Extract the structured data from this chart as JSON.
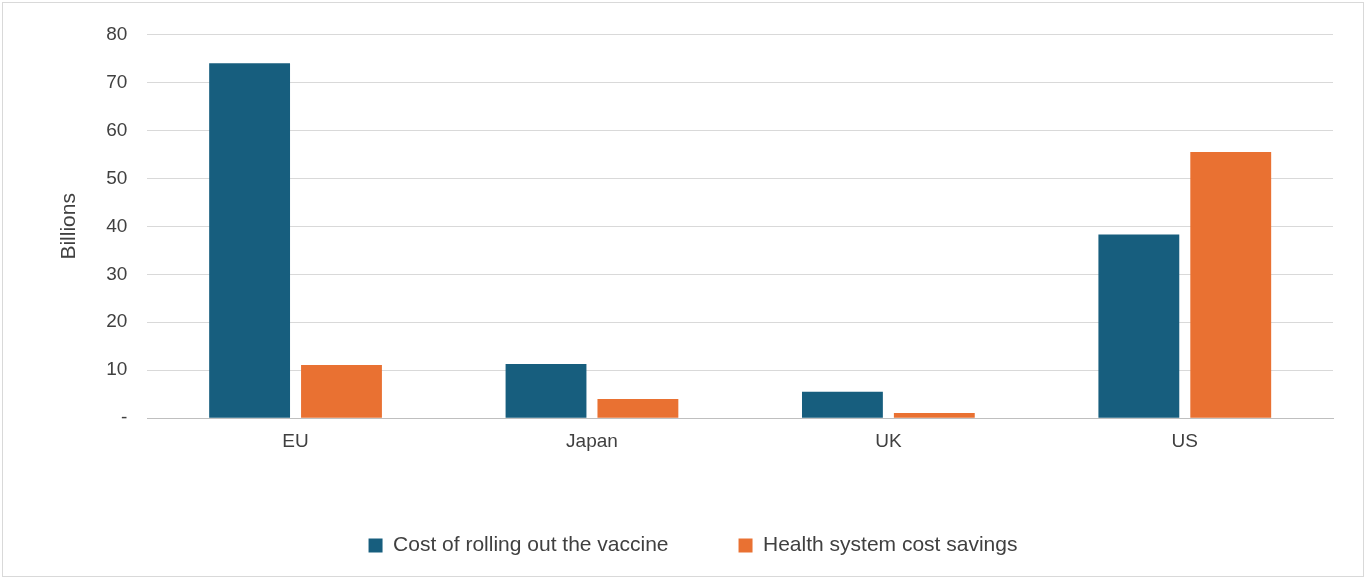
{
  "chart_data": {
    "type": "bar",
    "ylabel": "Billions",
    "categories": [
      "EU",
      "Japan",
      "UK",
      "US"
    ],
    "series": [
      {
        "name": "Cost of rolling out the vaccine",
        "color": "#175e7e",
        "values": [
          74,
          11.3,
          5.5,
          38.3
        ]
      },
      {
        "name": "Health system cost savings",
        "color": "#e97132",
        "values": [
          11.1,
          4,
          1.1,
          55.5
        ]
      }
    ],
    "ylim": [
      0,
      80
    ],
    "yticks": [
      {
        "value": 0,
        "label": "-"
      },
      10,
      20,
      30,
      40,
      50,
      60,
      70,
      80
    ],
    "grid": "y",
    "legend": "bottom"
  }
}
